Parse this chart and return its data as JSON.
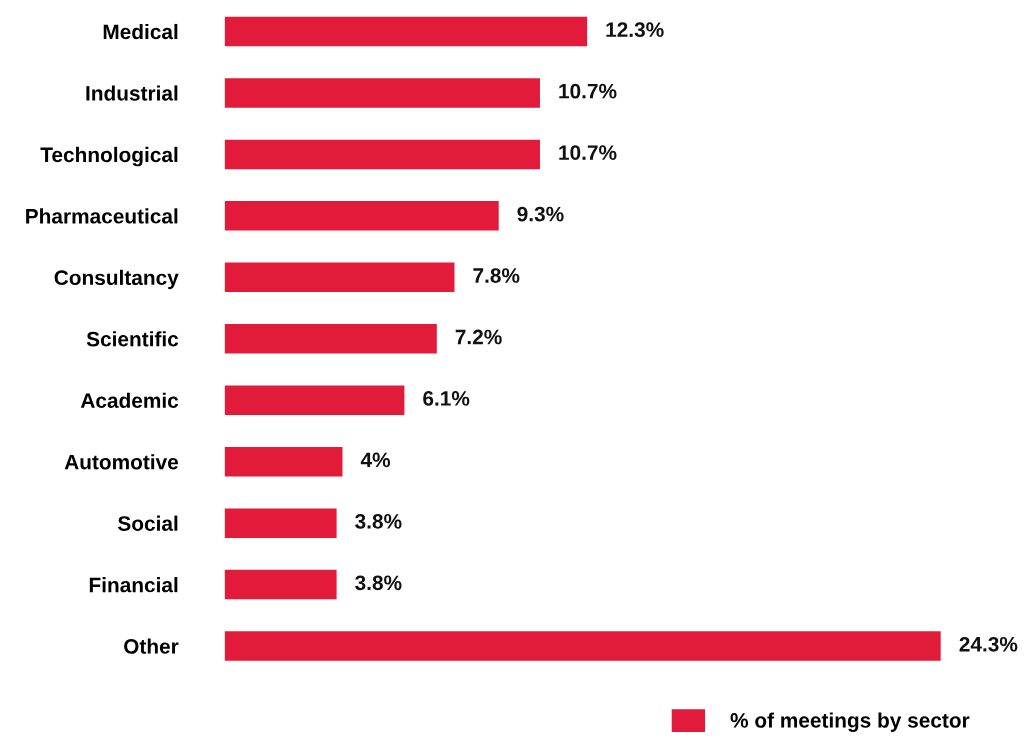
{
  "chart_data": {
    "type": "bar",
    "orientation": "horizontal",
    "categories": [
      "Medical",
      "Industrial",
      "Technological",
      "Pharmaceutical",
      "Consultancy",
      "Scientific",
      "Academic",
      "Automotive",
      "Social",
      "Financial",
      "Other"
    ],
    "series": [
      {
        "name": "% of meetings by sector",
        "color": "#e31b3a",
        "values": [
          12.3,
          10.7,
          10.7,
          9.3,
          7.8,
          7.2,
          6.1,
          4,
          3.8,
          3.8,
          24.3
        ],
        "value_labels": [
          "12.3%",
          "10.7%",
          "10.7%",
          "9.3%",
          "7.8%",
          "7.2%",
          "6.1%",
          "4%",
          "3.8%",
          "3.8%",
          "24.3%"
        ]
      }
    ],
    "legend": "bottom right",
    "grid": false
  }
}
